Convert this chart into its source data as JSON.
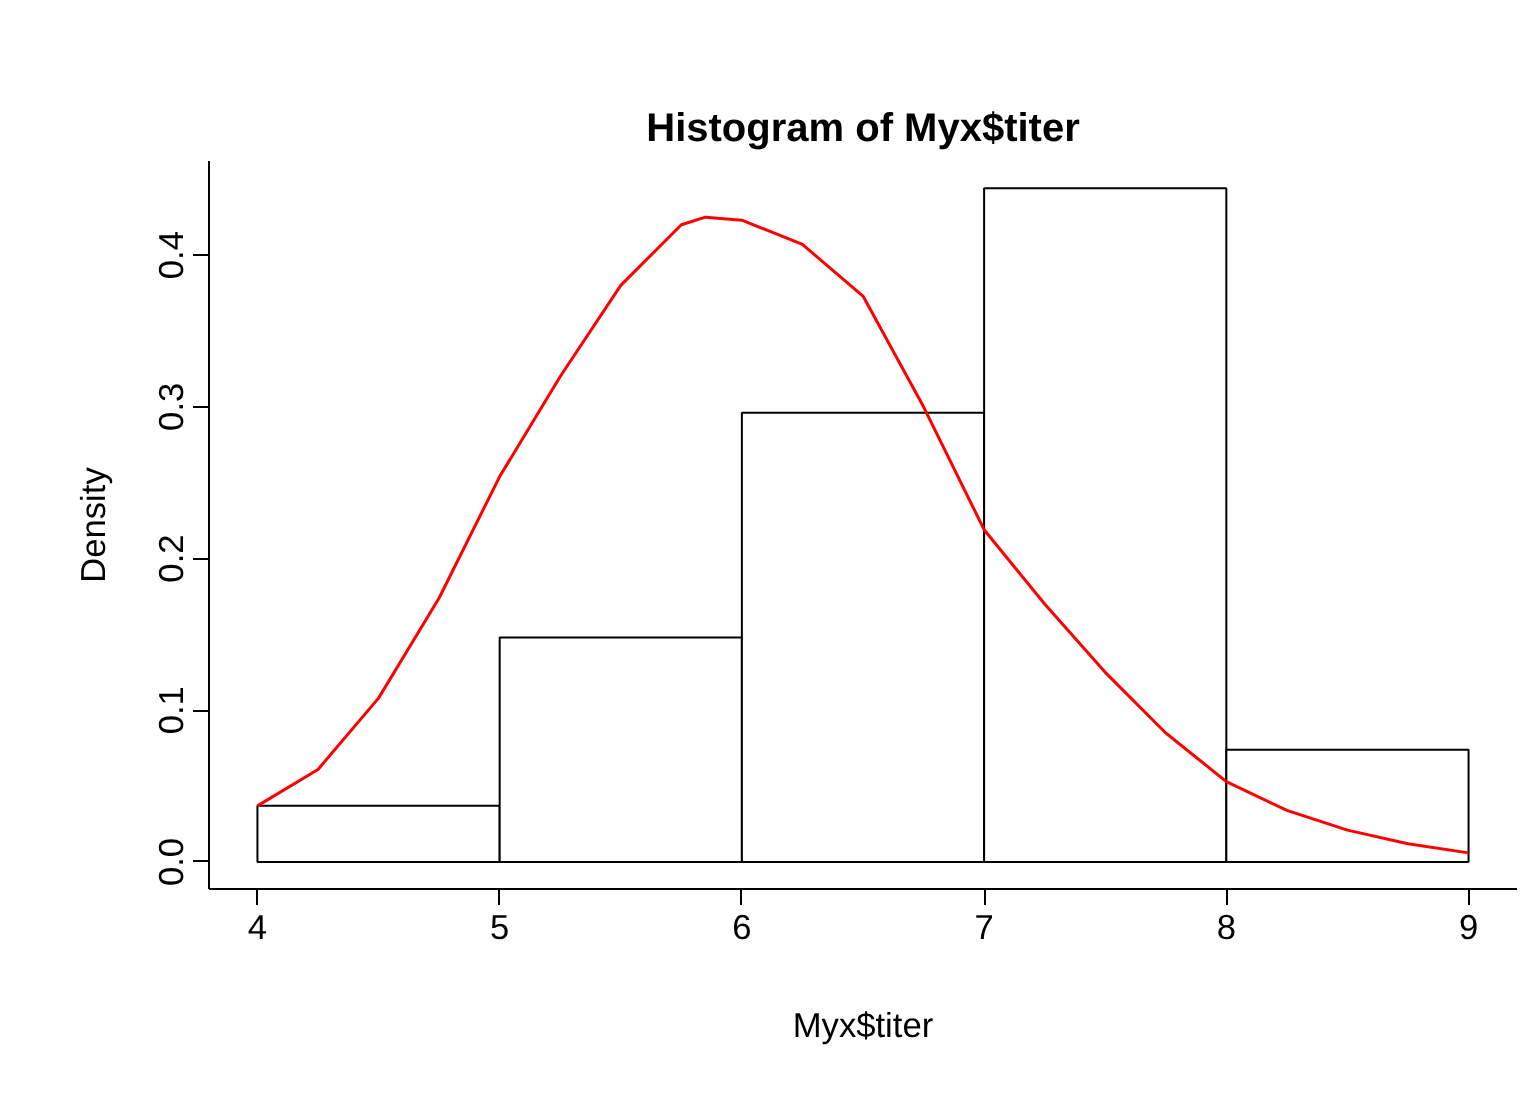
{
  "chart_data": {
    "type": "histogram",
    "title": "Histogram of Myx$titer",
    "xlabel": "Myx$titer",
    "ylabel": "Density",
    "bins": [
      4,
      5,
      6,
      7,
      8,
      9
    ],
    "values": [
      0.037,
      0.148,
      0.296,
      0.444,
      0.074
    ],
    "color": "#ffffff",
    "series": [
      {
        "type": "line",
        "color": "#ff0000",
        "x": [
          4,
          4.25,
          4.5,
          4.75,
          5,
          5.25,
          5.5,
          5.75,
          5.85,
          6,
          6.25,
          6.5,
          6.75,
          7,
          7.25,
          7.5,
          7.75,
          8,
          8.25,
          8.5,
          8.75,
          9
        ],
        "values": [
          0.037,
          0.061,
          0.108,
          0.174,
          0.254,
          0.32,
          0.38,
          0.42,
          0.425,
          0.423,
          0.407,
          0.373,
          0.3,
          0.219,
          0.17,
          0.125,
          0.085,
          0.053,
          0.034,
          0.021,
          0.012,
          0.006
        ]
      }
    ],
    "xlim": [
      3.8,
      9.2
    ],
    "ylim": [
      -0.0178,
      0.462
    ],
    "xticks": [
      4,
      5,
      6,
      7,
      8,
      9
    ],
    "yticks": [
      {
        "value": 0,
        "label": "0.0"
      },
      {
        "value": 0.1,
        "label": "0.1"
      },
      {
        "value": 0.2,
        "label": "0.2"
      },
      {
        "value": 0.3,
        "label": "0.3"
      },
      {
        "value": 0.4,
        "label": "0.4"
      }
    ],
    "grid": false,
    "line_style": "solid",
    "marker": "none"
  }
}
